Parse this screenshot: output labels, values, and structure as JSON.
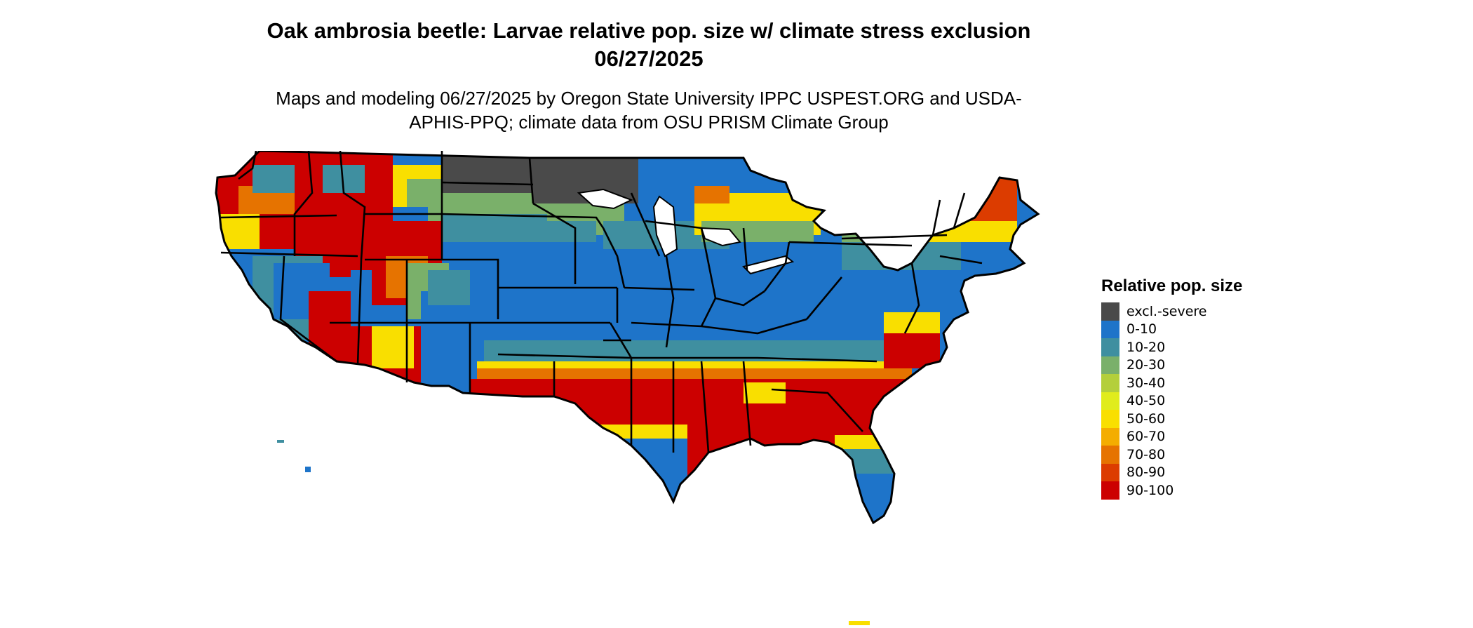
{
  "title": "Oak ambrosia beetle: Larvae relative pop. size w/ climate stress exclusion 06/27/2025",
  "subtitle": "Maps and modeling 06/27/2025 by Oregon State University IPPC USPEST.ORG and USDA-APHIS-PPQ; climate data from OSU PRISM Climate Group",
  "legend": {
    "title": "Relative pop. size",
    "items": [
      {
        "label": "excl.-severe",
        "color": "#4a4a4a"
      },
      {
        "label": "0-10",
        "color": "#1e74c9"
      },
      {
        "label": "10-20",
        "color": "#3f8fa0"
      },
      {
        "label": "20-30",
        "color": "#7ab06a"
      },
      {
        "label": "30-40",
        "color": "#b4cf3b"
      },
      {
        "label": "40-50",
        "color": "#e0ec1c"
      },
      {
        "label": "50-60",
        "color": "#f9df00"
      },
      {
        "label": "60-70",
        "color": "#f4ad00"
      },
      {
        "label": "70-80",
        "color": "#e67300"
      },
      {
        "label": "80-90",
        "color": "#dc3c00"
      },
      {
        "label": "90-100",
        "color": "#cc0000"
      }
    ]
  }
}
